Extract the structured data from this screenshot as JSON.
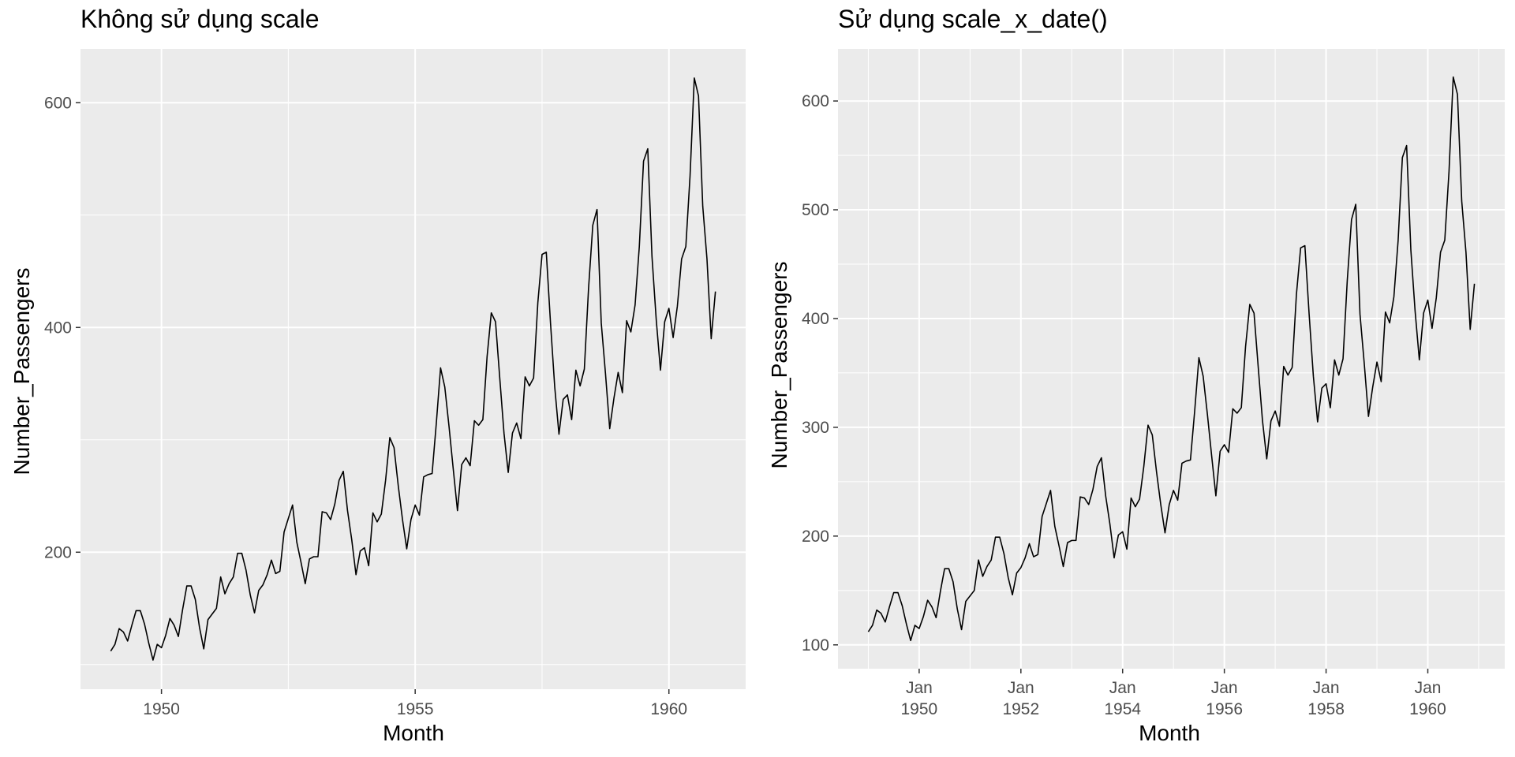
{
  "chart_data": [
    {
      "type": "line",
      "title": "Không sử dụng scale",
      "xlabel": "Month",
      "ylabel": "Number_Passengers",
      "x_axis": {
        "kind": "continuous",
        "ticks": [
          1950,
          1955,
          1960
        ],
        "tick_labels": [
          "1950",
          "1955",
          "1960"
        ]
      },
      "y_axis": {
        "ticks": [
          200,
          400,
          600
        ],
        "tick_labels": [
          "200",
          "400",
          "600"
        ]
      },
      "grid": true,
      "series_ref": "airpassengers"
    },
    {
      "type": "line",
      "title": "Sử dụng scale_x_date()",
      "xlabel": "Month",
      "ylabel": "Number_Passengers",
      "x_axis": {
        "kind": "date",
        "ticks": [
          "1950-01",
          "1952-01",
          "1954-01",
          "1956-01",
          "1958-01",
          "1960-01"
        ],
        "tick_labels": [
          [
            "Jan",
            "1950"
          ],
          [
            "Jan",
            "1952"
          ],
          [
            "Jan",
            "1954"
          ],
          [
            "Jan",
            "1956"
          ],
          [
            "Jan",
            "1958"
          ],
          [
            "Jan",
            "1960"
          ]
        ]
      },
      "y_axis": {
        "ticks": [
          100,
          200,
          300,
          400,
          500,
          600
        ],
        "tick_labels": [
          "100",
          "200",
          "300",
          "400",
          "500",
          "600"
        ]
      },
      "grid": true,
      "series_ref": "airpassengers"
    }
  ],
  "series": {
    "airpassengers": {
      "start": "1949-01",
      "frequency": "monthly",
      "values": [
        112,
        118,
        132,
        129,
        121,
        135,
        148,
        148,
        136,
        119,
        104,
        118,
        115,
        126,
        141,
        135,
        125,
        149,
        170,
        170,
        158,
        133,
        114,
        140,
        145,
        150,
        178,
        163,
        172,
        178,
        199,
        199,
        184,
        162,
        146,
        166,
        171,
        180,
        193,
        181,
        183,
        218,
        230,
        242,
        209,
        191,
        172,
        194,
        196,
        196,
        236,
        235,
        229,
        243,
        264,
        272,
        237,
        211,
        180,
        201,
        204,
        188,
        235,
        227,
        234,
        264,
        302,
        293,
        259,
        229,
        203,
        229,
        242,
        233,
        267,
        269,
        270,
        315,
        364,
        347,
        312,
        274,
        237,
        278,
        284,
        277,
        317,
        313,
        318,
        374,
        413,
        405,
        355,
        306,
        271,
        306,
        315,
        301,
        356,
        348,
        355,
        422,
        465,
        467,
        404,
        347,
        305,
        336,
        340,
        318,
        362,
        348,
        363,
        435,
        491,
        505,
        404,
        359,
        310,
        337,
        360,
        342,
        406,
        396,
        420,
        472,
        548,
        559,
        463,
        407,
        362,
        405,
        417,
        391,
        419,
        461,
        472,
        535,
        622,
        606,
        508,
        461,
        390,
        432
      ]
    }
  },
  "colors": {
    "panel_bg": "#ebebeb",
    "grid": "#ffffff",
    "line": "#000000",
    "tick": "#333333",
    "tick_text": "#4d4d4d"
  }
}
